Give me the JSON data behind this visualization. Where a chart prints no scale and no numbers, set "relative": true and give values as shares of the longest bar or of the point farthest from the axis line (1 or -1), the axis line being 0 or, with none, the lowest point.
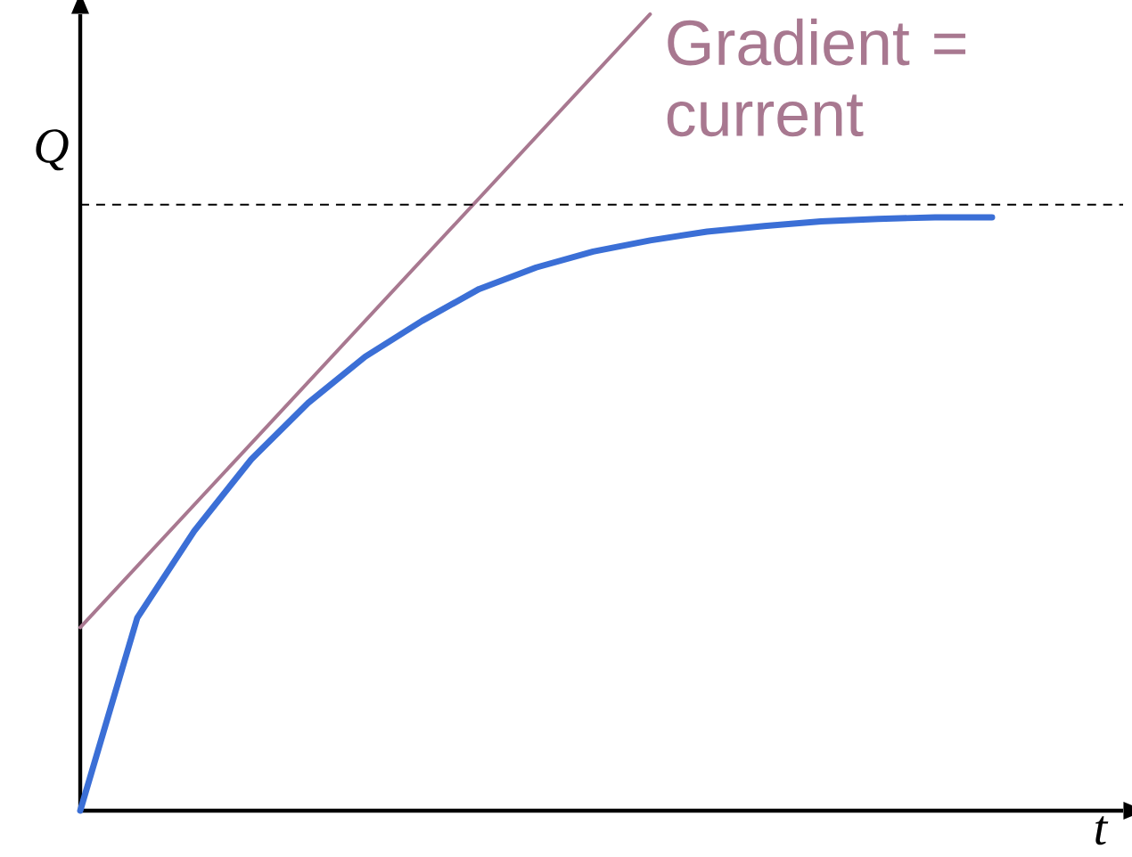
{
  "chart_data": {
    "type": "line",
    "relative": true,
    "xlabel": "t",
    "ylabel": "Q",
    "marker": "none",
    "categories": [
      null,
      null,
      null,
      null,
      null,
      null,
      null,
      null,
      null,
      null,
      null,
      null,
      null,
      null,
      null,
      null,
      null,
      null
    ],
    "annotations": [
      "Gradient = current"
    ],
    "ref_lines": [
      {
        "axis": "y",
        "value": 0.761,
        "color": "#000000",
        "line_style": "dashed"
      }
    ],
    "series": [
      {
        "color": "#3b6fd6",
        "line_style": "solid",
        "values": [
          0,
          0.242,
          0.351,
          0.441,
          0.512,
          0.57,
          0.615,
          0.655,
          0.682,
          0.702,
          0.716,
          0.727,
          0.734,
          0.74,
          0.743,
          0.745,
          0.745,
          null
        ]
      },
      {
        "color": "#a87890",
        "line_style": "solid",
        "values": [
          0.23,
          null,
          null,
          null,
          null,
          null,
          null,
          null,
          null,
          null,
          1,
          null,
          null,
          null,
          null,
          null,
          null,
          null
        ]
      }
    ]
  }
}
